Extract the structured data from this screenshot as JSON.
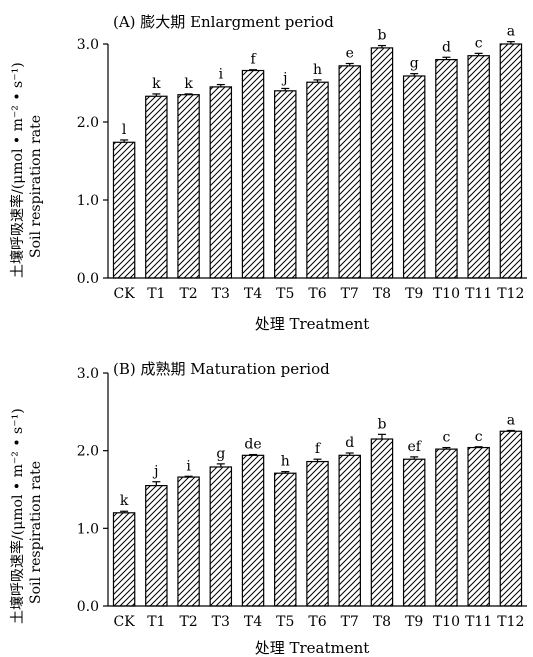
{
  "chart_data": [
    {
      "type": "bar",
      "title": "(A) 膨大期 Enlargment period",
      "xlabel": "处理 Treatment",
      "ylabel_cn": "土壤呼吸速率/(μmol • m⁻² • s⁻¹)",
      "ylabel_en": "Soil respiration rate",
      "ylim": [
        0,
        3.0
      ],
      "yticks": [
        "0.0",
        "1.0",
        "2.0",
        "3.0"
      ],
      "categories": [
        "CK",
        "T1",
        "T2",
        "T3",
        "T4",
        "T5",
        "T6",
        "T7",
        "T8",
        "T9",
        "T10",
        "T11",
        "T12"
      ],
      "values": [
        1.74,
        2.33,
        2.35,
        2.45,
        2.66,
        2.4,
        2.51,
        2.72,
        2.95,
        2.59,
        2.8,
        2.85,
        3.0
      ],
      "errors": [
        0.03,
        0.03,
        0.01,
        0.03,
        0.01,
        0.03,
        0.03,
        0.03,
        0.03,
        0.03,
        0.03,
        0.03,
        0.03
      ],
      "letters": [
        "l",
        "k",
        "k",
        "i",
        "f",
        "j",
        "h",
        "e",
        "b",
        "g",
        "d",
        "c",
        "a"
      ]
    },
    {
      "type": "bar",
      "title": "(B) 成熟期 Maturation period",
      "xlabel": "处理 Treatment",
      "ylabel_cn": "土壤呼吸速率/(μmol • m⁻² • s⁻¹)",
      "ylabel_en": "Soil respiration rate",
      "ylim": [
        0,
        3.0
      ],
      "yticks": [
        "0.0",
        "1.0",
        "2.0",
        "3.0"
      ],
      "categories": [
        "CK",
        "T1",
        "T2",
        "T3",
        "T4",
        "T5",
        "T6",
        "T7",
        "T8",
        "T9",
        "T10",
        "T11",
        "T12"
      ],
      "values": [
        1.2,
        1.55,
        1.66,
        1.79,
        1.94,
        1.71,
        1.86,
        1.94,
        2.15,
        1.89,
        2.02,
        2.04,
        2.25
      ],
      "errors": [
        0.02,
        0.05,
        0.01,
        0.04,
        0.01,
        0.02,
        0.03,
        0.03,
        0.06,
        0.03,
        0.02,
        0.01,
        0.01
      ],
      "letters": [
        "k",
        "j",
        "i",
        "g",
        "de",
        "h",
        "f",
        "d",
        "b",
        "ef",
        "c",
        "c",
        "a"
      ]
    }
  ]
}
